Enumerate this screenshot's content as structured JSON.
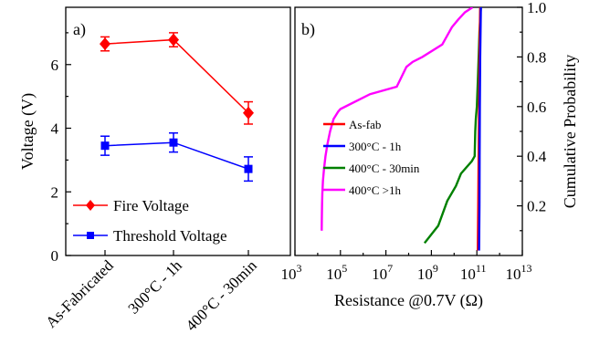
{
  "chart_data": [
    {
      "panel_label": "a)",
      "type": "line",
      "categories": [
        "As-Fabricated",
        "300°C - 1h",
        "400°C - 30min"
      ],
      "ylabel": "Voltage (V)",
      "ylim": [
        0,
        7.8
      ],
      "yticks": [
        "0",
        "2",
        "4",
        "6"
      ],
      "grid": false,
      "legend_position": "bottom-right",
      "series": [
        {
          "name": "Fire Voltage",
          "color": "#ff0000",
          "marker": "diamond",
          "values": [
            6.65,
            6.78,
            4.48
          ],
          "errors": [
            0.22,
            0.22,
            0.35
          ]
        },
        {
          "name": "Threshold Voltage",
          "color": "#0000ff",
          "marker": "square",
          "values": [
            3.45,
            3.55,
            2.72
          ],
          "errors": [
            0.3,
            0.3,
            0.38
          ]
        }
      ]
    },
    {
      "panel_label": "b)",
      "type": "line",
      "xlabel": "Resistance @0.7V (Ω)",
      "ylabel": "Cumulative Probability",
      "xscale": "log",
      "xlim": [
        1000,
        10000000000000
      ],
      "ylim": [
        0,
        1.0
      ],
      "xtick_bases": [
        "10",
        "10",
        "10",
        "10",
        "10",
        "10"
      ],
      "xtick_exponents": [
        "3",
        "5",
        "7",
        "9",
        "11",
        "13"
      ],
      "yticks": [
        "0.2",
        "0.4",
        "0.6",
        "0.8",
        "1.0"
      ],
      "grid": false,
      "legend_position": "center-left",
      "series": [
        {
          "name": "As-fab",
          "color": "#ff0000",
          "x": [
            110000000000,
            115000000000,
            120000000000,
            125000000000,
            130000000000,
            140000000000
          ],
          "y": [
            0.02,
            0.2,
            0.4,
            0.6,
            0.8,
            1.0
          ]
        },
        {
          "name": "300°C - 1h",
          "color": "#0000ff",
          "x": [
            125000000000,
            130000000000,
            132000000000,
            135000000000,
            140000000000,
            150000000000
          ],
          "y": [
            0.02,
            0.2,
            0.4,
            0.6,
            0.8,
            1.0
          ]
        },
        {
          "name": "400°C - 30min",
          "color": "#008000",
          "x": [
            500000000,
            2000000000,
            5000000000,
            12000000000,
            20000000000,
            60000000000,
            80000000000,
            85000000000,
            90000000000,
            100000000000,
            110000000000,
            120000000000,
            125000000000,
            130000000000,
            140000000000,
            150000000000
          ],
          "y": [
            0.05,
            0.12,
            0.22,
            0.28,
            0.33,
            0.38,
            0.4,
            0.5,
            0.55,
            0.6,
            0.7,
            0.8,
            0.85,
            0.9,
            0.95,
            1.0
          ]
        },
        {
          "name": "400°C >1h",
          "color": "#ff00ff",
          "x": [
            15000,
            15200,
            15500,
            16000,
            17000,
            19000,
            22000,
            27000,
            35000,
            50000,
            80000,
            100000,
            2000000,
            30000000,
            80000000,
            150000000,
            400000000,
            3000000000,
            8000000000,
            15000000000,
            30000000000,
            65000000000
          ],
          "y": [
            0.1,
            0.15,
            0.2,
            0.25,
            0.3,
            0.35,
            0.4,
            0.45,
            0.5,
            0.55,
            0.58,
            0.59,
            0.65,
            0.68,
            0.76,
            0.78,
            0.8,
            0.85,
            0.92,
            0.95,
            0.98,
            1.0
          ]
        }
      ]
    }
  ]
}
